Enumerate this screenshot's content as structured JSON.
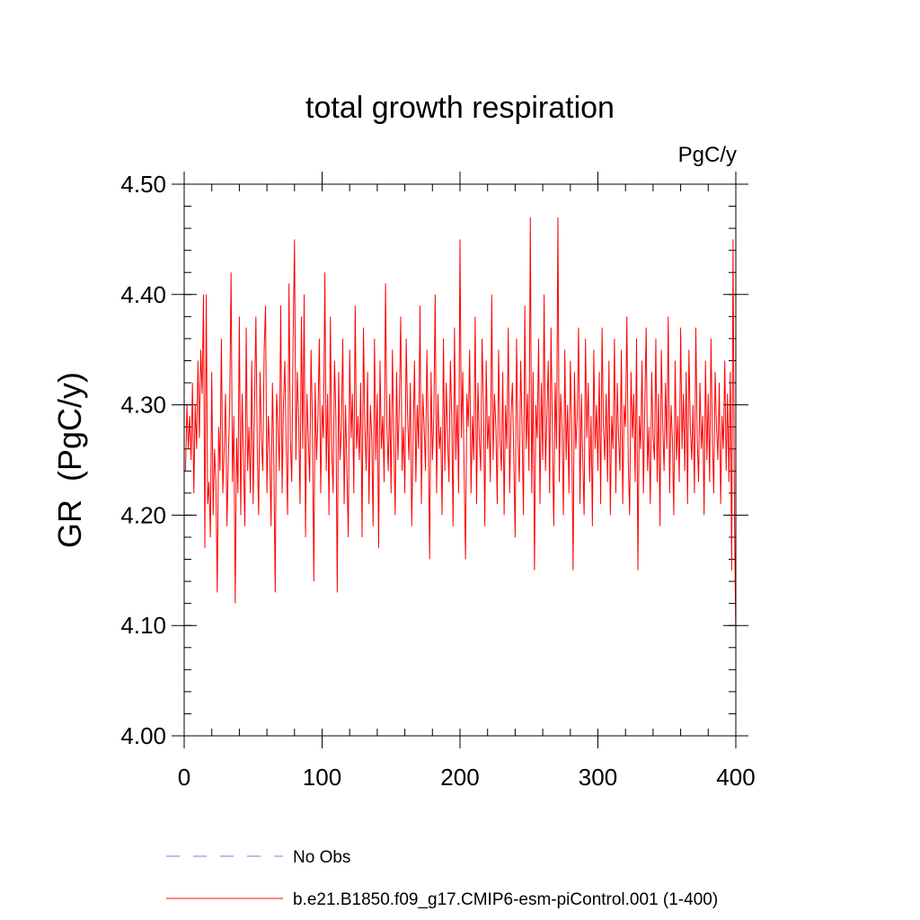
{
  "chart_data": {
    "type": "line",
    "title": "total growth respiration",
    "units_label": "PgC/y",
    "xlabel": "",
    "ylabel": "GR  (PgC/y)",
    "xlim": [
      0,
      400
    ],
    "ylim": [
      4.0,
      4.5
    ],
    "x_ticks": [
      0,
      100,
      200,
      300,
      400
    ],
    "x_tick_labels": [
      "0",
      "100",
      "200",
      "300",
      "400"
    ],
    "y_ticks": [
      4.0,
      4.1,
      4.2,
      4.3,
      4.4,
      4.5
    ],
    "y_tick_labels": [
      "4.00",
      "4.10",
      "4.20",
      "4.30",
      "4.40",
      "4.50"
    ],
    "grid": false,
    "legend_position": "bottom",
    "series": [
      {
        "name": "No Obs",
        "color": "#7f7fcf",
        "style": "dashed",
        "values": []
      },
      {
        "name": "b.e21.B1850.f09_g17.CMIP6-esm-piControl.001 (1-400)",
        "color": "#ff0000",
        "style": "solid",
        "x_start": 1,
        "values": [
          4.24,
          4.3,
          4.26,
          4.29,
          4.25,
          4.32,
          4.22,
          4.3,
          4.26,
          4.34,
          4.27,
          4.35,
          4.31,
          4.4,
          4.17,
          4.4,
          4.21,
          4.23,
          4.18,
          4.33,
          4.2,
          4.26,
          4.23,
          4.13,
          4.28,
          4.24,
          4.36,
          4.22,
          4.26,
          4.31,
          4.19,
          4.25,
          4.3,
          4.42,
          4.23,
          4.29,
          4.12,
          4.27,
          4.22,
          4.38,
          4.2,
          4.31,
          4.25,
          4.19,
          4.37,
          4.24,
          4.28,
          4.22,
          4.34,
          4.21,
          4.3,
          4.38,
          4.26,
          4.2,
          4.33,
          4.27,
          4.24,
          4.35,
          4.39,
          4.22,
          4.29,
          4.26,
          4.19,
          4.32,
          4.25,
          4.13,
          4.31,
          4.28,
          4.24,
          4.39,
          4.22,
          4.3,
          4.34,
          4.26,
          4.2,
          4.41,
          4.27,
          4.23,
          4.36,
          4.45,
          4.25,
          4.33,
          4.29,
          4.21,
          4.38,
          4.26,
          4.4,
          4.18,
          4.31,
          4.27,
          4.23,
          4.35,
          4.28,
          4.14,
          4.32,
          4.25,
          4.29,
          4.36,
          4.22,
          4.3,
          4.27,
          4.42,
          4.24,
          4.31,
          4.2,
          4.38,
          4.26,
          4.22,
          4.34,
          4.29,
          4.13,
          4.33,
          4.25,
          4.28,
          4.36,
          4.21,
          4.3,
          4.24,
          4.18,
          4.35,
          4.27,
          4.31,
          4.22,
          4.39,
          4.26,
          4.29,
          4.25,
          4.32,
          4.18,
          4.37,
          4.28,
          4.24,
          4.33,
          4.21,
          4.3,
          4.27,
          4.19,
          4.36,
          4.25,
          4.31,
          4.17,
          4.34,
          4.26,
          4.29,
          4.23,
          4.41,
          4.28,
          4.24,
          4.31,
          4.22,
          4.35,
          4.27,
          4.2,
          4.33,
          4.25,
          4.3,
          4.38,
          4.24,
          4.28,
          4.22,
          4.36,
          4.29,
          4.25,
          4.32,
          4.19,
          4.27,
          4.34,
          4.23,
          4.3,
          4.26,
          4.39,
          4.21,
          4.31,
          4.28,
          4.24,
          4.35,
          4.27,
          4.16,
          4.33,
          4.25,
          4.29,
          4.4,
          4.22,
          4.31,
          4.26,
          4.28,
          4.2,
          4.36,
          4.24,
          4.32,
          4.27,
          4.23,
          4.34,
          4.29,
          4.19,
          4.37,
          4.25,
          4.3,
          4.22,
          4.45,
          4.27,
          4.33,
          4.24,
          4.16,
          4.31,
          4.28,
          4.35,
          4.22,
          4.29,
          4.25,
          4.38,
          4.21,
          4.32,
          4.27,
          4.24,
          4.36,
          4.3,
          4.19,
          4.34,
          4.26,
          4.29,
          4.23,
          4.4,
          4.25,
          4.31,
          4.28,
          4.21,
          4.35,
          4.27,
          4.24,
          4.33,
          4.2,
          4.3,
          4.26,
          4.37,
          4.22,
          4.29,
          4.32,
          4.25,
          4.18,
          4.36,
          4.27,
          4.23,
          4.34,
          4.28,
          4.2,
          4.39,
          4.26,
          4.31,
          4.24,
          4.47,
          4.22,
          4.33,
          4.15,
          4.3,
          4.27,
          4.36,
          4.21,
          4.32,
          4.25,
          4.4,
          4.24,
          4.29,
          4.34,
          4.22,
          4.37,
          4.27,
          4.19,
          4.32,
          4.26,
          4.47,
          4.23,
          4.31,
          4.28,
          4.2,
          4.35,
          4.25,
          4.3,
          4.22,
          4.34,
          4.28,
          4.15,
          4.33,
          4.26,
          4.29,
          4.37,
          4.21,
          4.31,
          4.25,
          4.2,
          4.36,
          4.27,
          4.32,
          4.23,
          4.29,
          4.19,
          4.35,
          4.26,
          4.3,
          4.24,
          4.33,
          4.21,
          4.37,
          4.28,
          4.25,
          4.31,
          4.23,
          4.34,
          4.2,
          4.29,
          4.26,
          4.36,
          4.22,
          4.32,
          4.27,
          4.24,
          4.35,
          4.21,
          4.3,
          4.28,
          4.38,
          4.25,
          4.2,
          4.33,
          4.27,
          4.31,
          4.23,
          4.36,
          4.15,
          4.29,
          4.26,
          4.34,
          4.22,
          4.3,
          4.37,
          4.24,
          4.28,
          4.21,
          4.33,
          4.27,
          4.25,
          4.36,
          4.23,
          4.31,
          4.19,
          4.35,
          4.28,
          4.24,
          4.32,
          4.26,
          4.38,
          4.22,
          4.3,
          4.27,
          4.2,
          4.34,
          4.25,
          4.29,
          4.23,
          4.37,
          4.26,
          4.31,
          4.24,
          4.33,
          4.21,
          4.35,
          4.28,
          4.25,
          4.3,
          4.22,
          4.37,
          4.27,
          4.23,
          4.32,
          4.26,
          4.29,
          4.2,
          4.34,
          4.25,
          4.31,
          4.23,
          4.36,
          4.27,
          4.22,
          4.33,
          4.28,
          4.25,
          4.32,
          4.21,
          4.29,
          4.26,
          4.34,
          4.24,
          4.31,
          4.23,
          4.33,
          4.15,
          4.45,
          4.2,
          4.09
        ]
      }
    ]
  }
}
